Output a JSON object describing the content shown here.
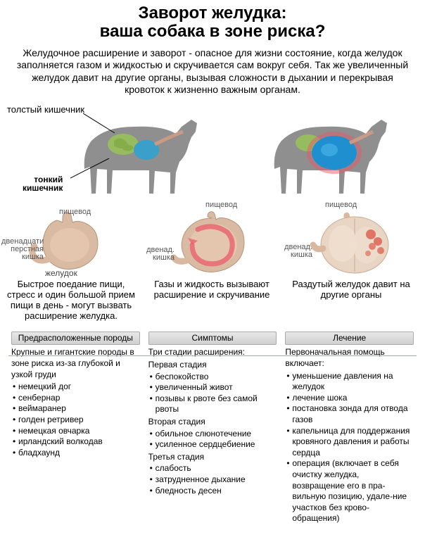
{
  "title": {
    "line1": "Заворот желудка:",
    "line2": "ваша собака в зоне риска?"
  },
  "intro": "Желудочное расширение и заворот - опасное для жизни состояние, когда желудок заполняется газом и жидкостью и скручивается сам вокруг себя. Так же увеличенный желудок давит на другие органы, вызывая сложности в дыхании и перекрывая кровоток к жизненно важным органам.",
  "labels": {
    "large_intestine": "толстый кишечник",
    "small_intestine": "тонкий\nкишечник",
    "esophagus": "пищевод",
    "duodenum": "двенадцати\nперстная\nкишка",
    "duodenum_short": "двенад.\nкишка",
    "stomach": "желудок"
  },
  "dog_colors": {
    "body": "#8f8f8f",
    "intestine": "#98c15a",
    "stomach_normal": "#3aa0c9",
    "stomach_bloated": "#1f8fcf",
    "esophagus": "#c99a84",
    "duodenum": "#d8b9a0"
  },
  "stages": [
    {
      "caption": "Быстрое поедание пищи, стресс и один большой прием пищи в день - могут вызвать расширение желудка.",
      "stomach_color": "#d9bba3",
      "highlight": "#e8c9b0"
    },
    {
      "caption": "Газы и жидкость вызывают расширение и скручивание",
      "stomach_color": "#d9bba3",
      "highlight": "#e8c9b0",
      "arrow": "#e85a6a"
    },
    {
      "caption": "Раздутый желудок давит на другие органы",
      "stomach_color": "#e9d5c4",
      "highlight": "#dd5a4a"
    }
  ],
  "columns": {
    "breeds": {
      "title": "Предрасположенные породы",
      "intro": "Крупные и гигантские породы в зоне риска из-за глубокой и узкой груди",
      "items": [
        "немецкий дог",
        "сенбернар",
        "веймаранер",
        "голден ретривер",
        "немецкая овчарка",
        "ирландский волкодав",
        "бладхаунд"
      ]
    },
    "symptoms": {
      "title": "Симптомы",
      "intro": "Три стадии расширения:",
      "stage1": {
        "label": "Первая стадия",
        "items": [
          "беспокойство",
          "увеличенный живот",
          "позывы к рвоте без самой рвоты"
        ]
      },
      "stage2": {
        "label": "Вторая стадия",
        "items": [
          "обильное слюнотечение",
          "усиленное сердцебиение"
        ]
      },
      "stage3": {
        "label": "Третья стадия",
        "items": [
          "слабость",
          "затрудненное дыхание",
          "бледность десен"
        ]
      }
    },
    "treatment": {
      "title": "Лечение",
      "intro": "Первоначальная помощь включает:",
      "items": [
        "уменьшение давления на желудок",
        "лечение шока",
        "постановка зонда для отвода газов",
        "капельница для поддержания кровяного давления и работы сердца",
        "операция (включает в себя очистку желудка, возвращение его в пра-вильную позицию, удале-ние участков без крово-обращения)"
      ]
    }
  }
}
